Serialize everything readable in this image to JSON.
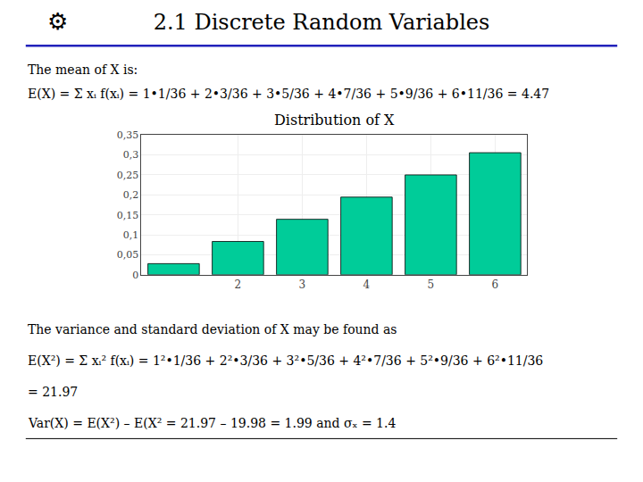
{
  "chart_data": {
    "type": "bar",
    "title": "2.1 Discrete Random Variables",
    "subtitle": "Distribution of X",
    "x": [
      1,
      2,
      3,
      4,
      5,
      6
    ],
    "values": [
      0.0278,
      0.0833,
      0.1389,
      0.1944,
      0.25,
      0.3056
    ],
    "color": "#00CC99",
    "xlim": [
      0.5,
      6.5
    ],
    "xticks": [
      2,
      3,
      4,
      5,
      6
    ],
    "ylim": [
      0,
      0.35
    ],
    "yticks": [
      0,
      {
        "value": 0.05,
        "label": "0,05"
      },
      {
        "value": 0.1,
        "label": "0,1"
      },
      {
        "value": 0.15,
        "label": "0,15"
      },
      {
        "value": 0.2,
        "label": "0,2"
      },
      {
        "value": 0.25,
        "label": "0,25"
      },
      {
        "value": 0.3,
        "label": "0,3"
      },
      {
        "value": 0.35,
        "label": "0,35"
      }
    ],
    "grid": true,
    "annotations": [
      "⚙",
      "The mean of X is:",
      "E(X) = Σ xᵢ f(xᵢ) = 1•1/36 + 2•3/36 + 3•5/36 + 4•7/36 + 5•9/36 + 6•11/36 = 4.47",
      "The variance and standard deviation of X may be found as",
      "E(X²) = Σ xᵢ² f(xᵢ) = 1²•1/36 + 2²•3/36 + 3²•5/36 + 4²•7/36 + 5²•9/36 + 6²•11/36",
      "= 21.97",
      "Var(X) = E(X²) – E(X² = 21.97 – 19.98 = 1.99 and σₓ = 1.4"
    ]
  }
}
